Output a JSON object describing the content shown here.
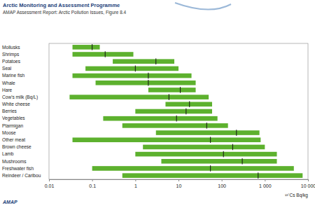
{
  "chart_data": {
    "type": "range",
    "title": "Arctic Monitoring and Assessment Programme",
    "subtitle": "AMAP Assessment Report: Arctic Pollution Issues, Figure 8.4",
    "xlabel": "¹³⁷Cs Bq/kg",
    "annotations": [
      "AMAP"
    ],
    "orientation": "horizontal",
    "log": "x",
    "grid": false,
    "color": "#5db12e",
    "categories": [
      "Mollusks",
      "Shrimps",
      "Potatoes",
      "Seal",
      "Marine fish",
      "Whale",
      "Hare",
      "Cow's milk (Bq/L)",
      "White cheese",
      "Berries",
      "Vegetables",
      "Ptarmigan",
      "Moose",
      "Other meat",
      "Brown cheese",
      "Lamb",
      "Mushrooms",
      "Freshwater fish",
      "Reindeer / Caribou"
    ],
    "low": [
      0.035,
      0.035,
      0.3,
      0.07,
      0.035,
      0.12,
      2,
      0.03,
      5,
      1,
      0.18,
      0.5,
      3,
      0.035,
      1.5,
      1,
      4,
      0.1,
      0.5
    ],
    "high": [
      0.15,
      0.9,
      8,
      10,
      20,
      25,
      25,
      50,
      60,
      60,
      80,
      140,
      750,
      800,
      1000,
      1900,
      1900,
      4700,
      7500
    ],
    "values": [
      0.1,
      0.2,
      3,
      1,
      2,
      2,
      11,
      6,
      18,
      15,
      9,
      45,
      220,
      55,
      180,
      110,
      300,
      55,
      700
    ],
    "xlim": [
      0.01,
      10000
    ],
    "xticks": [
      0.01,
      0.1,
      1,
      10,
      100,
      {
        "value": 1000,
        "label": "1 000"
      },
      {
        "value": 10000,
        "label": "10 000"
      }
    ]
  }
}
